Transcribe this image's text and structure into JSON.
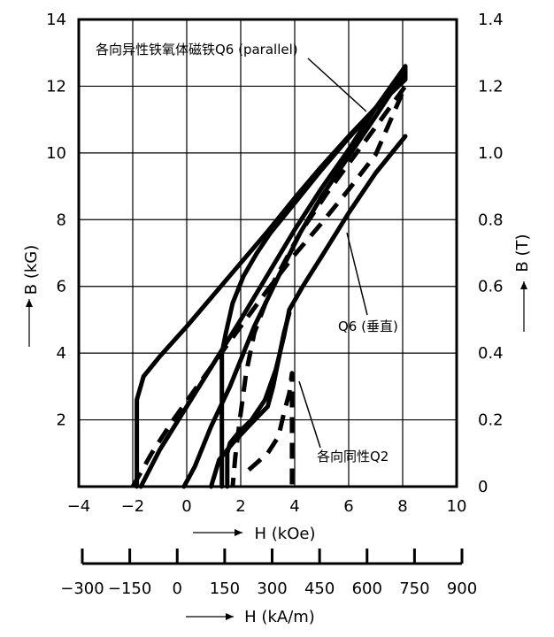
{
  "chart_data": {
    "type": "line",
    "title": "",
    "xlabel": "H (kOe)",
    "ylabel_left": "B (kG)",
    "ylabel_right": "B (T)",
    "secondary_x_label": "H (kA/m)",
    "xlim": [
      -4,
      10
    ],
    "ylim": [
      0,
      14
    ],
    "grid": true,
    "x_ticks": [
      "−4",
      "−2",
      "0",
      "2",
      "4",
      "6",
      "8",
      "10"
    ],
    "y_ticks_left": [
      "2",
      "4",
      "6",
      "8",
      "10",
      "12",
      "14"
    ],
    "y_ticks_right": [
      "0",
      "0.2",
      "0.4",
      "0.6",
      "0.8",
      "1.0",
      "1.2",
      "1.4"
    ],
    "secondary_x_ticks": [
      "−300",
      "−150",
      "0",
      "150",
      "300",
      "450",
      "600",
      "750",
      "900"
    ],
    "annotations": [
      {
        "text": "各向异性铁氧体磁铁Q6 (parallel)"
      },
      {
        "text": "Q6 (垂直)"
      },
      {
        "text": "各向同性Q2"
      }
    ],
    "series": [
      {
        "style": "solid",
        "points": [
          [
            -1.85,
            0
          ],
          [
            -1.85,
            2.6
          ],
          [
            -1.6,
            3.3
          ],
          [
            -1.0,
            3.9
          ],
          [
            0,
            4.8
          ],
          [
            1,
            5.75
          ],
          [
            2,
            6.7
          ],
          [
            3,
            7.65
          ],
          [
            4,
            8.65
          ],
          [
            5,
            9.6
          ],
          [
            6,
            10.5
          ],
          [
            7,
            11.35
          ],
          [
            8.1,
            12.2
          ],
          [
            8.1,
            12.6
          ],
          [
            7,
            11.35
          ],
          [
            6,
            10.1
          ],
          [
            5,
            8.95
          ],
          [
            4,
            7.7
          ],
          [
            3,
            6.35
          ],
          [
            2,
            5.0
          ],
          [
            1,
            3.7
          ],
          [
            0,
            2.4
          ],
          [
            -1,
            1.1
          ],
          [
            -1.7,
            0
          ]
        ]
      },
      {
        "style": "solid",
        "points": [
          [
            1.3,
            0
          ],
          [
            1.3,
            4.0
          ],
          [
            1.45,
            4.6
          ],
          [
            1.7,
            5.5
          ],
          [
            2.1,
            6.3
          ],
          [
            2.6,
            7.0
          ],
          [
            3.1,
            7.6
          ],
          [
            3.6,
            8.1
          ],
          [
            4.2,
            8.7
          ],
          [
            5,
            9.5
          ],
          [
            6,
            10.45
          ],
          [
            7,
            11.35
          ],
          [
            8.1,
            12.45
          ],
          [
            7,
            11.1
          ],
          [
            6,
            9.9
          ],
          [
            5,
            8.7
          ],
          [
            4.2,
            7.6
          ],
          [
            3.4,
            6.3
          ],
          [
            2.5,
            4.8
          ],
          [
            1.6,
            3.0
          ],
          [
            0.9,
            1.8
          ],
          [
            0.3,
            0.6
          ],
          [
            -0.1,
            0
          ]
        ]
      },
      {
        "style": "solid",
        "points": [
          [
            1.5,
            0
          ],
          [
            1.5,
            1.0
          ],
          [
            1.6,
            1.3
          ],
          [
            1.9,
            1.6
          ],
          [
            2.4,
            2.0
          ],
          [
            2.9,
            2.6
          ],
          [
            3.3,
            3.5
          ],
          [
            3.6,
            4.5
          ],
          [
            3.8,
            5.3
          ],
          [
            4.3,
            6.0
          ],
          [
            5,
            6.9
          ],
          [
            6,
            8.2
          ],
          [
            7,
            9.4
          ],
          [
            8.1,
            10.5
          ]
        ]
      },
      {
        "style": "solid",
        "points": [
          [
            0.9,
            0
          ],
          [
            1.2,
            0.8
          ],
          [
            1.7,
            1.3
          ],
          [
            2.4,
            1.9
          ],
          [
            3.0,
            2.4
          ],
          [
            3.2,
            3.0
          ],
          [
            3.4,
            3.8
          ],
          [
            3.6,
            4.6
          ],
          [
            3.8,
            5.2
          ]
        ]
      },
      {
        "style": "dashed",
        "points": [
          [
            -2.0,
            0
          ],
          [
            -1.3,
            1.0
          ],
          [
            -0.5,
            2.0
          ],
          [
            0.3,
            2.9
          ],
          [
            1.1,
            3.8
          ],
          [
            2.0,
            4.8
          ],
          [
            3.0,
            5.9
          ],
          [
            4.0,
            6.95
          ],
          [
            5.0,
            7.9
          ],
          [
            6,
            8.9
          ],
          [
            7,
            9.95
          ],
          [
            8.1,
            12.0
          ],
          [
            7.2,
            11.0
          ],
          [
            6.2,
            9.9
          ],
          [
            5.2,
            8.8
          ],
          [
            4.2,
            7.6
          ],
          [
            3.2,
            6.1
          ],
          [
            2.5,
            4.6
          ],
          [
            2.2,
            3.4
          ],
          [
            2.0,
            2.2
          ],
          [
            1.8,
            0.9
          ],
          [
            1.7,
            0
          ]
        ]
      },
      {
        "style": "dashed",
        "points": [
          [
            2.3,
            0.5
          ],
          [
            3.0,
            1.0
          ],
          [
            3.4,
            1.5
          ],
          [
            3.6,
            2.2
          ],
          [
            3.8,
            2.8
          ],
          [
            3.9,
            3.4
          ],
          [
            3.9,
            0
          ]
        ]
      }
    ]
  }
}
